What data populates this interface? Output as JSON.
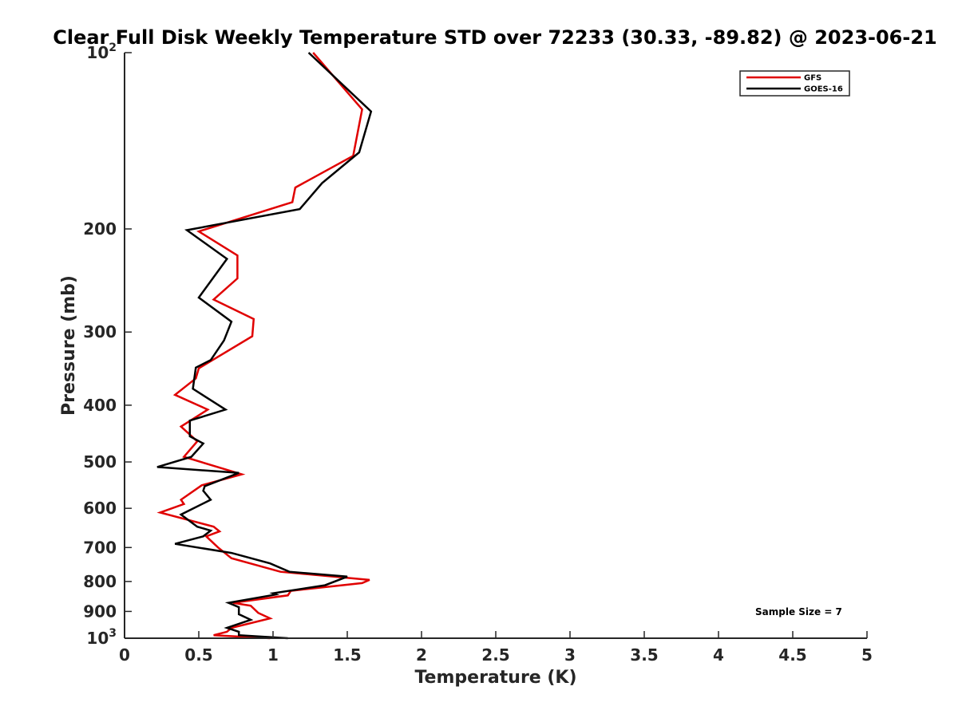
{
  "chart_data": {
    "type": "line",
    "title": "Clear Full Disk Weekly Temperature STD over 72233 (30.33, -89.82) @ 2023-06-21",
    "xlabel": "Temperature (K)",
    "ylabel": "Pressure (mb)",
    "xlim": [
      0,
      5
    ],
    "ylim": [
      1000,
      100
    ],
    "y_scale": "log",
    "y_reversed": true,
    "x_ticks": [
      "0",
      "0.5",
      "1",
      "1.5",
      "2",
      "2.5",
      "3",
      "3.5",
      "4",
      "4.5",
      "5"
    ],
    "y_ticks": [
      {
        "value": 100,
        "base": "10",
        "exp": "2"
      },
      {
        "value": 200,
        "label": "200"
      },
      {
        "value": 300,
        "label": "300"
      },
      {
        "value": 400,
        "label": "400"
      },
      {
        "value": 500,
        "label": "500"
      },
      {
        "value": 600,
        "label": "600"
      },
      {
        "value": 700,
        "label": "700"
      },
      {
        "value": 800,
        "label": "800"
      },
      {
        "value": 900,
        "label": "900"
      },
      {
        "value": 1000,
        "base": "10",
        "exp": "3"
      }
    ],
    "grid": false,
    "legend_position": "top-right",
    "annotation": "Sample Size = 7",
    "series": [
      {
        "name": "GFS",
        "color": "#e00000",
        "points": [
          [
            1.27,
            100
          ],
          [
            1.6,
            125
          ],
          [
            1.54,
            150
          ],
          [
            1.15,
            170
          ],
          [
            1.13,
            180
          ],
          [
            0.5,
            202
          ],
          [
            0.76,
            222
          ],
          [
            0.76,
            243
          ],
          [
            0.6,
            264
          ],
          [
            0.87,
            285
          ],
          [
            0.86,
            305
          ],
          [
            0.5,
            346
          ],
          [
            0.48,
            360
          ],
          [
            0.34,
            384
          ],
          [
            0.56,
            407
          ],
          [
            0.38,
            435
          ],
          [
            0.49,
            461
          ],
          [
            0.4,
            490
          ],
          [
            0.79,
            525
          ],
          [
            0.52,
            548
          ],
          [
            0.38,
            580
          ],
          [
            0.4,
            590
          ],
          [
            0.24,
            610
          ],
          [
            0.6,
            645
          ],
          [
            0.64,
            657
          ],
          [
            0.55,
            670
          ],
          [
            0.63,
            700
          ],
          [
            0.72,
            730
          ],
          [
            1.05,
            770
          ],
          [
            1.65,
            795
          ],
          [
            1.6,
            805
          ],
          [
            1.12,
            830
          ],
          [
            1.1,
            845
          ],
          [
            0.73,
            870
          ],
          [
            0.85,
            880
          ],
          [
            0.9,
            905
          ],
          [
            0.98,
            925
          ],
          [
            0.72,
            960
          ],
          [
            0.69,
            975
          ],
          [
            0.6,
            988
          ],
          [
            0.98,
            1000
          ]
        ]
      },
      {
        "name": "GOES-16",
        "color": "#000000",
        "points": [
          [
            1.24,
            100
          ],
          [
            1.66,
            126
          ],
          [
            1.58,
            148
          ],
          [
            1.33,
            167
          ],
          [
            1.18,
            185
          ],
          [
            0.42,
            201
          ],
          [
            0.69,
            225
          ],
          [
            0.5,
            262
          ],
          [
            0.72,
            288
          ],
          [
            0.67,
            310
          ],
          [
            0.58,
            335
          ],
          [
            0.48,
            345
          ],
          [
            0.46,
            375
          ],
          [
            0.68,
            407
          ],
          [
            0.44,
            425
          ],
          [
            0.44,
            452
          ],
          [
            0.53,
            465
          ],
          [
            0.45,
            490
          ],
          [
            0.22,
            510
          ],
          [
            0.77,
            522
          ],
          [
            0.54,
            550
          ],
          [
            0.53,
            560
          ],
          [
            0.58,
            580
          ],
          [
            0.38,
            615
          ],
          [
            0.49,
            645
          ],
          [
            0.58,
            655
          ],
          [
            0.53,
            670
          ],
          [
            0.34,
            690
          ],
          [
            0.72,
            715
          ],
          [
            0.98,
            745
          ],
          [
            1.11,
            770
          ],
          [
            1.5,
            785
          ],
          [
            1.35,
            812
          ],
          [
            1.0,
            838
          ],
          [
            1.02,
            842
          ],
          [
            0.7,
            870
          ],
          [
            0.77,
            885
          ],
          [
            0.77,
            910
          ],
          [
            0.85,
            930
          ],
          [
            0.69,
            960
          ],
          [
            0.77,
            975
          ],
          [
            0.77,
            988
          ],
          [
            1.1,
            1000
          ]
        ]
      }
    ]
  }
}
